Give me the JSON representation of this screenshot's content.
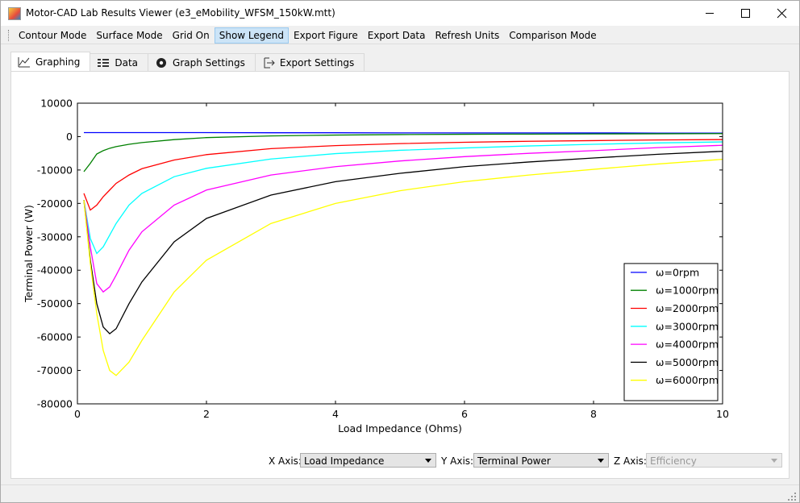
{
  "window": {
    "title": "Motor-CAD Lab Results Viewer (e3_eMobility_WFSM_150kW.mtt)"
  },
  "toolbar": {
    "items": [
      "Contour Mode",
      "Surface Mode",
      "Grid On",
      "Show Legend",
      "Export Figure",
      "Export Data",
      "Refresh Units",
      "Comparison Mode"
    ],
    "active": "Show Legend"
  },
  "tabs": {
    "items": [
      "Graphing",
      "Data",
      "Graph Settings",
      "Export Settings"
    ],
    "selected": "Graphing"
  },
  "chart_data": {
    "type": "line",
    "x_label": "Load Impedance  (Ohms)",
    "y_label": "Terminal Power  (W)",
    "x": [
      0.1,
      0.2,
      0.3,
      0.4,
      0.5,
      0.6,
      0.8,
      1,
      1.5,
      2,
      3,
      4,
      5,
      6,
      7,
      8,
      9,
      10
    ],
    "series": [
      {
        "name": "ω=0rpm",
        "color": "#0000ff",
        "values": [
          1200,
          1200,
          1200,
          1200,
          1200,
          1200,
          1200,
          1200,
          1200,
          1200,
          1150,
          1150,
          1100,
          1100,
          1100,
          1100,
          1050,
          1050
        ]
      },
      {
        "name": "ω=1000rpm",
        "color": "#008000",
        "values": [
          -10500,
          -8000,
          -5200,
          -4200,
          -3500,
          -3000,
          -2300,
          -1800,
          -900,
          -300,
          200,
          450,
          600,
          700,
          750,
          800,
          850,
          900
        ]
      },
      {
        "name": "ω=2000rpm",
        "color": "#ff0000",
        "values": [
          -17000,
          -22000,
          -20500,
          -18000,
          -16000,
          -14000,
          -11500,
          -9600,
          -7000,
          -5400,
          -3600,
          -2700,
          -2100,
          -1700,
          -1400,
          -1200,
          -1000,
          -900
        ]
      },
      {
        "name": "ω=3000rpm",
        "color": "#00ffff",
        "values": [
          -19000,
          -30500,
          -35000,
          -33000,
          -29500,
          -26000,
          -20500,
          -17000,
          -12000,
          -9500,
          -6700,
          -5100,
          -4100,
          -3400,
          -2800,
          -2300,
          -1900,
          -1600
        ]
      },
      {
        "name": "ω=4000rpm",
        "color": "#ff00ff",
        "values": [
          -19000,
          -33000,
          -44000,
          -46500,
          -45000,
          -41500,
          -34000,
          -28500,
          -20500,
          -16000,
          -11500,
          -9000,
          -7300,
          -6000,
          -5000,
          -4200,
          -3300,
          -2600
        ]
      },
      {
        "name": "ω=5000rpm",
        "color": "#000000",
        "values": [
          -19000,
          -37000,
          -50000,
          -57000,
          -59000,
          -57500,
          -50000,
          -43500,
          -31500,
          -24500,
          -17500,
          -13500,
          -11000,
          -9000,
          -7600,
          -6400,
          -5300,
          -4400
        ]
      },
      {
        "name": "ω=6000rpm",
        "color": "#ffff00",
        "values": [
          -19000,
          -38000,
          -53000,
          -64000,
          -70000,
          -71500,
          -67500,
          -61000,
          -46500,
          -37000,
          -26000,
          -20000,
          -16200,
          -13500,
          -11500,
          -9800,
          -8200,
          -6800
        ]
      }
    ],
    "xlim": [
      0,
      10
    ],
    "ylim": [
      -80000,
      10000
    ],
    "xticks": [
      0,
      2,
      4,
      6,
      8,
      10
    ],
    "yticks": [
      -80000,
      -70000,
      -60000,
      -50000,
      -40000,
      -30000,
      -20000,
      -10000,
      0,
      10000
    ],
    "grid": false,
    "legend": "lower right"
  },
  "axis_controls": [
    {
      "label": "X Axis:",
      "value": "Load Impedance",
      "enabled": true
    },
    {
      "label": "Y Axis:",
      "value": "Terminal Power",
      "enabled": true
    },
    {
      "label": "Z Axis:",
      "value": "Efficiency",
      "enabled": false
    }
  ]
}
